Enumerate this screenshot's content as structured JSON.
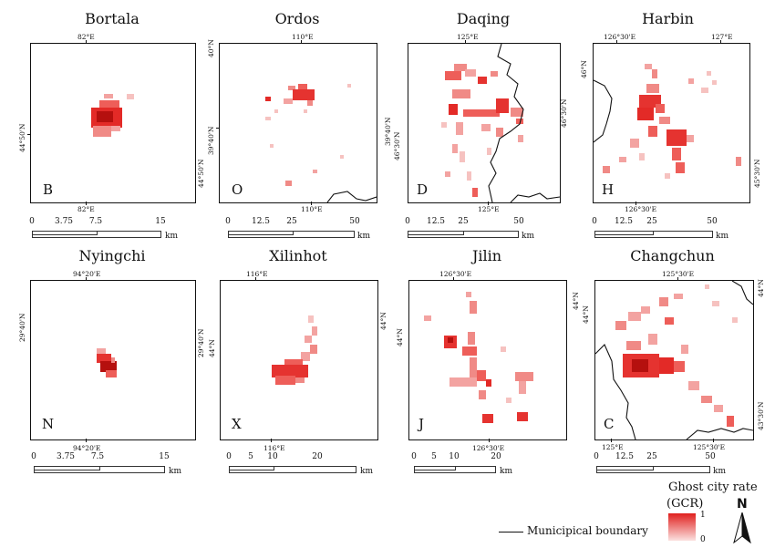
{
  "panels": [
    {
      "id": "bortala",
      "title": "Bortala",
      "letter": "B",
      "top_ticks": [
        "82°E"
      ],
      "bottom_ticks": [
        "82°E"
      ],
      "left_ticks": [
        "44°50'N"
      ],
      "right_ticks": [
        "44°50'N"
      ],
      "scale_labels": [
        "0",
        "3.75",
        "7.5",
        "15"
      ],
      "scale_unit": "km"
    },
    {
      "id": "ordos",
      "title": "Ordos",
      "letter": "O",
      "top_ticks": [
        "110°E"
      ],
      "bottom_ticks": [
        "110°E"
      ],
      "left_ticks": [
        "40°N",
        "39°40'N"
      ],
      "right_ticks": [],
      "scale_labels": [
        "0",
        "12.5",
        "25",
        "50"
      ],
      "scale_unit": "km"
    },
    {
      "id": "daqing",
      "title": "Daqing",
      "letter": "D",
      "top_ticks": [
        "125°E"
      ],
      "bottom_ticks": [
        "125°E"
      ],
      "left_ticks": [
        "39°40'N",
        "46°30'N"
      ],
      "right_ticks": [
        "46°30'N"
      ],
      "scale_labels": [
        "0",
        "12.5",
        "25",
        "50"
      ],
      "scale_unit": "km"
    },
    {
      "id": "harbin",
      "title": "Harbin",
      "letter": "H",
      "top_ticks": [
        "126°30'E",
        "127°E"
      ],
      "bottom_ticks": [
        "126°30'E"
      ],
      "left_ticks": [
        "46°N"
      ],
      "right_ticks": [
        "45°30'N"
      ],
      "scale_labels": [
        "0",
        "12.5",
        "25",
        "50"
      ],
      "scale_unit": "km"
    },
    {
      "id": "nyingchi",
      "title": "Nyingchi",
      "letter": "N",
      "top_ticks": [
        "94°20'E"
      ],
      "bottom_ticks": [
        "94°20'E"
      ],
      "left_ticks": [
        "29°40'N"
      ],
      "right_ticks": [
        "29°40'N"
      ],
      "scale_labels": [
        "0",
        "3.75",
        "7.5",
        "15"
      ],
      "scale_unit": "km"
    },
    {
      "id": "xilinhot",
      "title": "Xilinhot",
      "letter": "X",
      "top_ticks": [
        "116°E"
      ],
      "bottom_ticks": [
        "116°E"
      ],
      "left_ticks": [
        "44°N"
      ],
      "right_ticks": [
        "44°N"
      ],
      "scale_labels": [
        "0",
        "5",
        "10",
        "20"
      ],
      "scale_unit": "km"
    },
    {
      "id": "jilin",
      "title": "Jilin",
      "letter": "J",
      "top_ticks": [
        "126°30'E"
      ],
      "bottom_ticks": [
        "126°30'E"
      ],
      "left_ticks": [
        "44°N"
      ],
      "right_ticks": [
        "44°N"
      ],
      "scale_labels": [
        "0",
        "5",
        "10",
        "20"
      ],
      "scale_unit": "km"
    },
    {
      "id": "changchun",
      "title": "Changchun",
      "letter": "C",
      "top_ticks": [
        "125°30'E"
      ],
      "bottom_ticks": [
        "125°E",
        "125°30'E"
      ],
      "left_ticks": [
        "44°N"
      ],
      "right_ticks": [
        "44°N",
        "43°30'N"
      ],
      "scale_labels": [
        "0",
        "12.5",
        "25",
        "50"
      ],
      "scale_unit": "km"
    }
  ],
  "legend": {
    "title_line1": "Ghost city rate",
    "title_line2": "(GCR)",
    "max_label": "1",
    "min_label": "0",
    "boundary_label": "Municipical boundary",
    "north_label": "N",
    "color_high": "#e0201e",
    "color_low": "#fbe1e0"
  }
}
